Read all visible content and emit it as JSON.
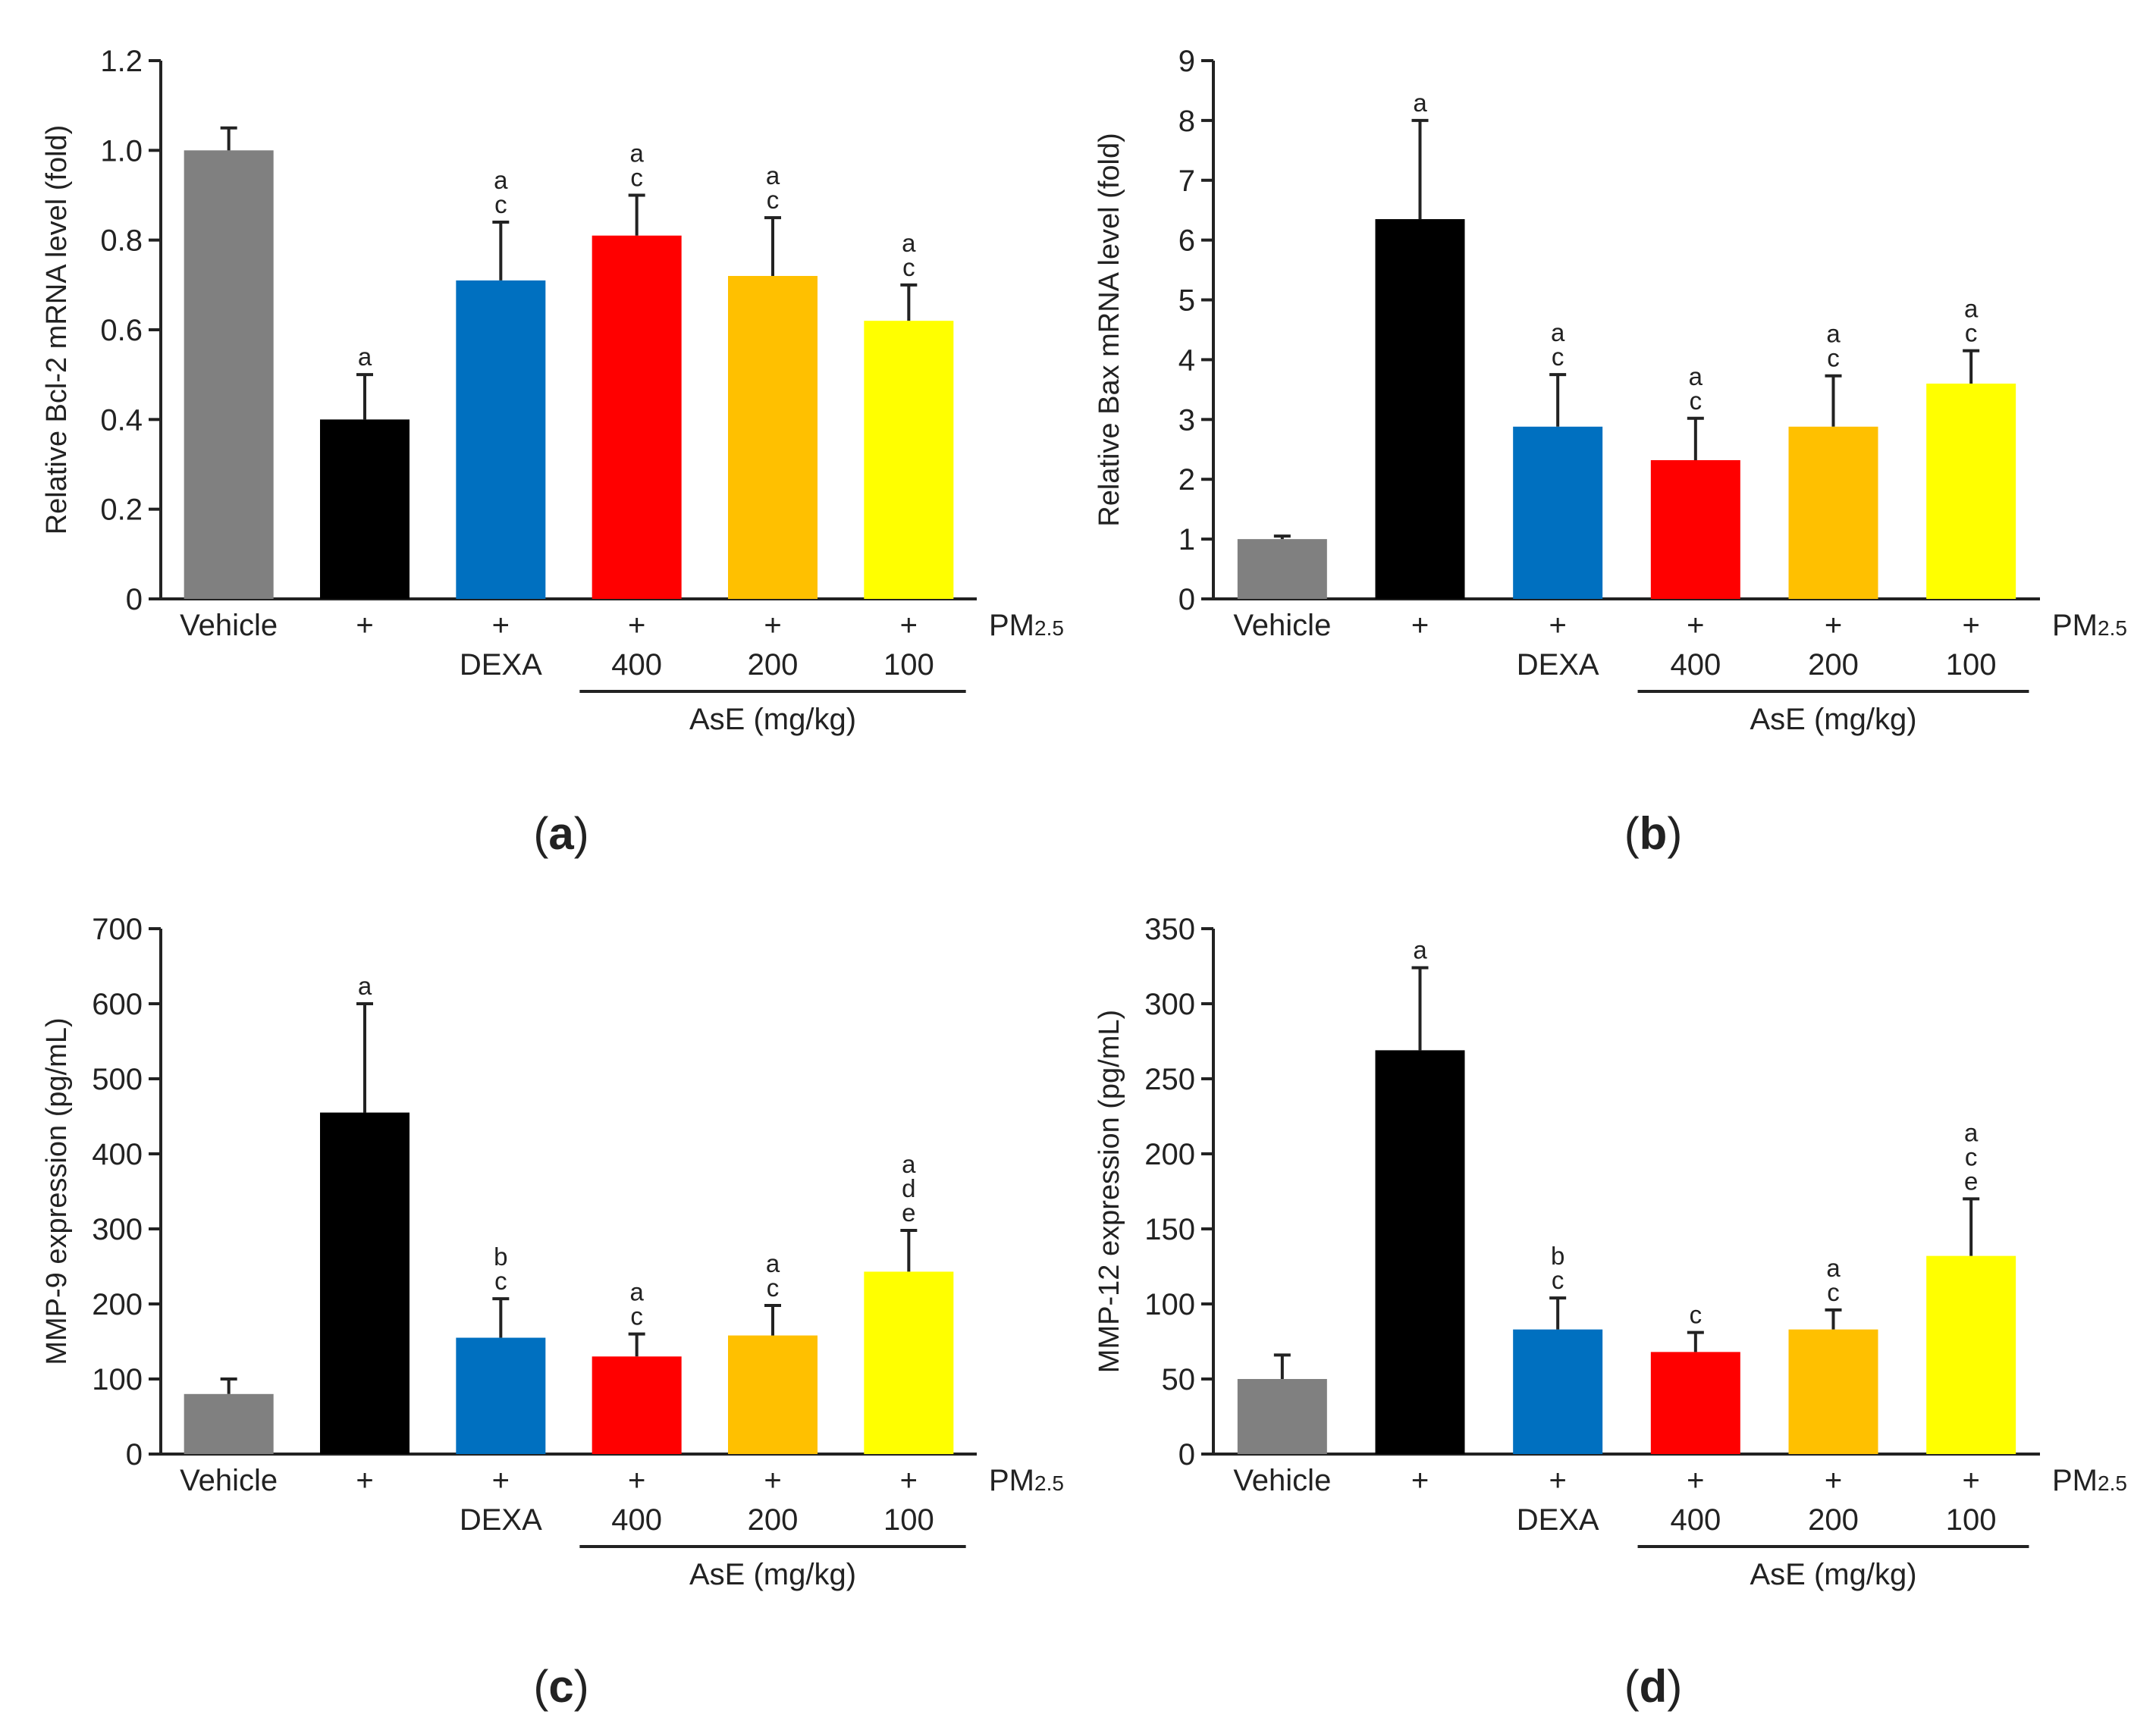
{
  "figure": {
    "panels": [
      {
        "panel_label": "a",
        "chart_data": {
          "type": "bar",
          "ylabel": "Relative Bcl-2 mRNA level (fold)",
          "ylim": [
            0,
            1.2
          ],
          "yticks": [
            "0",
            "0.2",
            "0.4",
            "0.6",
            "0.8",
            "1.0",
            "1.2"
          ],
          "ytick_values": [
            0,
            0.2,
            0.4,
            0.6,
            0.8,
            1.0,
            1.2
          ],
          "pm_row": [
            "Vehicle",
            "+",
            "+",
            "+",
            "+",
            "+"
          ],
          "pm_label": "PM",
          "pm_subscript": "2.5",
          "treatment_row": [
            "",
            "",
            "DEXA",
            "400",
            "200",
            "100"
          ],
          "group_label": "AsE (mg/kg)",
          "values": [
            1.0,
            0.4,
            0.71,
            0.81,
            0.72,
            0.62
          ],
          "errors": [
            0.05,
            0.1,
            0.13,
            0.09,
            0.13,
            0.08
          ],
          "significance": [
            [],
            [
              "a"
            ],
            [
              "a",
              "c"
            ],
            [
              "a",
              "c"
            ],
            [
              "a",
              "c"
            ],
            [
              "a",
              "c"
            ]
          ],
          "colors": [
            "#808080",
            "#000000",
            "#0070c0",
            "#ff0000",
            "#ffc000",
            "#ffff00"
          ]
        }
      },
      {
        "panel_label": "b",
        "chart_data": {
          "type": "bar",
          "ylabel": "Relative Bax mRNA level (fold)",
          "ylim": [
            0,
            9
          ],
          "yticks": [
            "0",
            "1",
            "2",
            "3",
            "4",
            "5",
            "6",
            "7",
            "8",
            "9"
          ],
          "ytick_values": [
            0,
            1,
            2,
            3,
            4,
            5,
            6,
            7,
            8,
            9
          ],
          "pm_row": [
            "Vehicle",
            "+",
            "+",
            "+",
            "+",
            "+"
          ],
          "pm_label": "PM",
          "pm_subscript": "2.5",
          "treatment_row": [
            "",
            "",
            "DEXA",
            "400",
            "200",
            "100"
          ],
          "group_label": "AsE (mg/kg)",
          "values": [
            1.0,
            6.35,
            2.88,
            2.32,
            2.88,
            3.6
          ],
          "errors": [
            0.05,
            1.65,
            0.87,
            0.7,
            0.85,
            0.55
          ],
          "significance": [
            [],
            [
              "a"
            ],
            [
              "a",
              "c"
            ],
            [
              "a",
              "c"
            ],
            [
              "a",
              "c"
            ],
            [
              "a",
              "c"
            ]
          ],
          "colors": [
            "#808080",
            "#000000",
            "#0070c0",
            "#ff0000",
            "#ffc000",
            "#ffff00"
          ]
        }
      },
      {
        "panel_label": "c",
        "chart_data": {
          "type": "bar",
          "ylabel": "MMP-9 expression (pg/mL)",
          "ylim": [
            0,
            700
          ],
          "yticks": [
            "0",
            "100",
            "200",
            "300",
            "400",
            "500",
            "600",
            "700"
          ],
          "ytick_values": [
            0,
            100,
            200,
            300,
            400,
            500,
            600,
            700
          ],
          "pm_row": [
            "Vehicle",
            "+",
            "+",
            "+",
            "+",
            "+"
          ],
          "pm_label": "PM",
          "pm_subscript": "2.5",
          "treatment_row": [
            "",
            "",
            "DEXA",
            "400",
            "200",
            "100"
          ],
          "group_label": "AsE (mg/kg)",
          "values": [
            80,
            455,
            155,
            130,
            158,
            243
          ],
          "errors": [
            20,
            145,
            52,
            30,
            40,
            55
          ],
          "significance": [
            [],
            [
              "a"
            ],
            [
              "b",
              "c"
            ],
            [
              "a",
              "c"
            ],
            [
              "a",
              "c"
            ],
            [
              "a",
              "d",
              "e"
            ]
          ],
          "colors": [
            "#808080",
            "#000000",
            "#0070c0",
            "#ff0000",
            "#ffc000",
            "#ffff00"
          ]
        }
      },
      {
        "panel_label": "d",
        "chart_data": {
          "type": "bar",
          "ylabel": "MMP-12 expression (pg/mL)",
          "ylim": [
            0,
            350
          ],
          "yticks": [
            "0",
            "50",
            "100",
            "150",
            "200",
            "250",
            "300",
            "350"
          ],
          "ytick_values": [
            0,
            50,
            100,
            150,
            200,
            250,
            300,
            350
          ],
          "pm_row": [
            "Vehicle",
            "+",
            "+",
            "+",
            "+",
            "+"
          ],
          "pm_label": "PM",
          "pm_subscript": "2.5",
          "treatment_row": [
            "",
            "",
            "DEXA",
            "400",
            "200",
            "100"
          ],
          "group_label": "AsE (mg/kg)",
          "values": [
            50,
            269,
            83,
            68,
            83,
            132
          ],
          "errors": [
            16,
            55,
            21,
            13,
            13,
            38
          ],
          "significance": [
            [],
            [
              "a"
            ],
            [
              "b",
              "c"
            ],
            [
              "c"
            ],
            [
              "a",
              "c"
            ],
            [
              "a",
              "c",
              "e"
            ]
          ],
          "colors": [
            "#808080",
            "#000000",
            "#0070c0",
            "#ff0000",
            "#ffc000",
            "#ffff00"
          ]
        }
      }
    ]
  }
}
